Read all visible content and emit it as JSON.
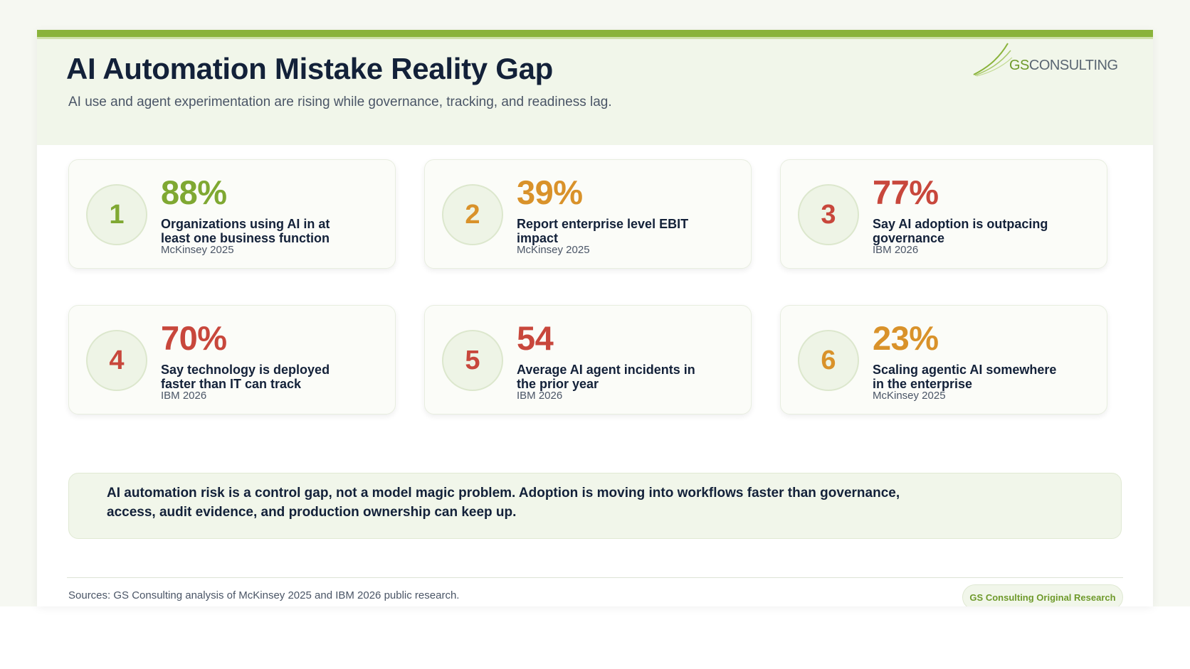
{
  "header": {
    "title": "AI Automation Mistake Reality Gap",
    "subtitle": "AI use and agent experimentation are rising while governance, tracking, and readiness lag.",
    "logo": {
      "prefix": "GS",
      "suffix": "CONSULTING"
    }
  },
  "cards": [
    {
      "number": "1",
      "stat": "88%",
      "description": "Organizations using AI in at least one business function",
      "source": "McKinsey 2025",
      "color": "#7fa832"
    },
    {
      "number": "2",
      "stat": "39%",
      "description": "Report enterprise level EBIT impact",
      "source": "McKinsey 2025",
      "color": "#d9922a"
    },
    {
      "number": "3",
      "stat": "77%",
      "description": "Say AI adoption is outpacing governance",
      "source": "IBM 2026",
      "color": "#c8473c"
    },
    {
      "number": "4",
      "stat": "70%",
      "description": "Say technology is deployed faster than IT can track",
      "source": "IBM 2026",
      "color": "#c8473c"
    },
    {
      "number": "5",
      "stat": "54",
      "description": "Average AI agent incidents in the prior year",
      "source": "IBM 2026",
      "color": "#c8473c"
    },
    {
      "number": "6",
      "stat": "23%",
      "description": "Scaling agentic AI somewhere in the enterprise",
      "source": "McKinsey 2025",
      "color": "#d9922a"
    }
  ],
  "callout": "AI automation risk is a control gap, not a model magic problem. Adoption is moving into workflows faster than governance, access, audit evidence, and production ownership can keep up.",
  "footer": {
    "sources": "Sources: GS Consulting analysis of McKinsey 2025 and IBM 2026 public research.",
    "badge": "GS Consulting Original Research"
  },
  "colors": {
    "accent_green": "#8ab33b",
    "navy": "#132139",
    "orange": "#d9922a",
    "red": "#c8473c"
  }
}
